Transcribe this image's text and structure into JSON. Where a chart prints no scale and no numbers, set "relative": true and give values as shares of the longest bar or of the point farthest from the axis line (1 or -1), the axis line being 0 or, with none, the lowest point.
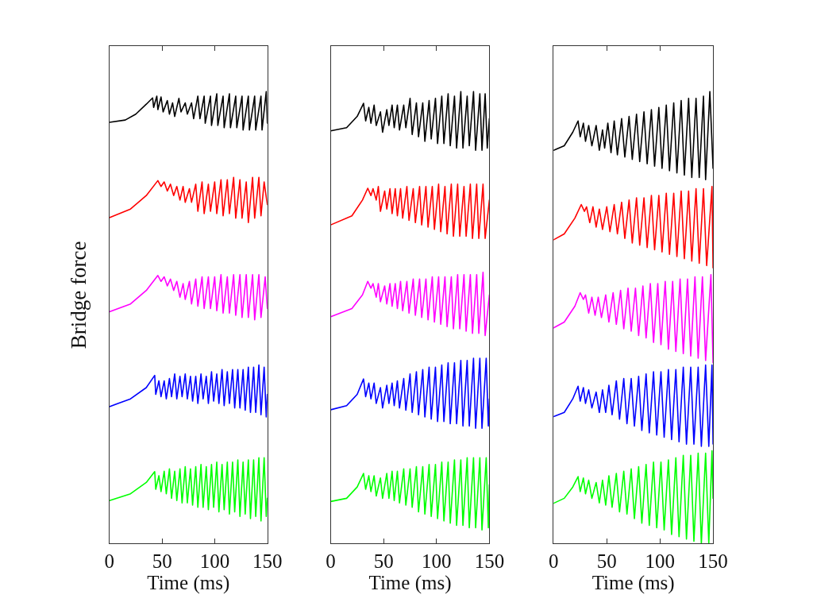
{
  "chart_data": [
    {
      "type": "line",
      "relative": true,
      "xlabel": "Time (ms)",
      "ylabel": "Bridge force",
      "xlim": [
        0,
        150
      ],
      "xticks": [
        0,
        50,
        100,
        150
      ],
      "series": [
        {
          "color": "#000000",
          "x": [
            0,
            15,
            25,
            35,
            41,
            42,
            45,
            46,
            49,
            51,
            55,
            57,
            60,
            62,
            66,
            68,
            72,
            74,
            78,
            80,
            84,
            86,
            90,
            91,
            96,
            97,
            102,
            103,
            108,
            109,
            114,
            115,
            120,
            121,
            126,
            127,
            132,
            133,
            138,
            139,
            144,
            145,
            149,
            150
          ],
          "values": [
            0.932,
            0.937,
            0.95,
            0.972,
            0.986,
            0.965,
            0.99,
            0.96,
            0.988,
            0.955,
            0.98,
            0.95,
            0.975,
            0.945,
            0.985,
            0.955,
            0.975,
            0.95,
            0.975,
            0.94,
            0.99,
            0.94,
            0.99,
            0.93,
            0.99,
            0.925,
            0.995,
            0.925,
            0.99,
            0.92,
            0.995,
            0.92,
            0.99,
            0.92,
            0.99,
            0.915,
            0.99,
            0.915,
            0.99,
            0.915,
            0.99,
            0.915,
            1.0,
            0.93
          ]
        },
        {
          "color": "#ff0000",
          "x": [
            0,
            20,
            35,
            46,
            49,
            52,
            55,
            58,
            61,
            64,
            67,
            70,
            72,
            76,
            78,
            82,
            84,
            88,
            90,
            94,
            96,
            100,
            102,
            106,
            108,
            112,
            114,
            118,
            120,
            124,
            126,
            130,
            132,
            136,
            138,
            142,
            144,
            147,
            150
          ],
          "values": [
            0.721,
            0.74,
            0.77,
            0.803,
            0.79,
            0.8,
            0.78,
            0.795,
            0.77,
            0.79,
            0.76,
            0.79,
            0.755,
            0.785,
            0.755,
            0.795,
            0.735,
            0.8,
            0.73,
            0.795,
            0.735,
            0.8,
            0.73,
            0.805,
            0.725,
            0.805,
            0.73,
            0.81,
            0.72,
            0.805,
            0.72,
            0.8,
            0.71,
            0.81,
            0.72,
            0.81,
            0.725,
            0.8,
            0.75
          ]
        },
        {
          "color": "#ff00ff",
          "x": [
            0,
            20,
            35,
            46,
            49,
            52,
            55,
            58,
            61,
            64,
            67,
            70,
            72,
            76,
            78,
            82,
            84,
            88,
            90,
            94,
            96,
            100,
            102,
            106,
            108,
            112,
            114,
            118,
            120,
            124,
            126,
            130,
            132,
            136,
            138,
            142,
            144,
            148,
            150
          ],
          "values": [
            0.513,
            0.53,
            0.56,
            0.593,
            0.58,
            0.59,
            0.57,
            0.585,
            0.56,
            0.58,
            0.545,
            0.575,
            0.54,
            0.58,
            0.53,
            0.585,
            0.525,
            0.59,
            0.52,
            0.59,
            0.52,
            0.59,
            0.515,
            0.595,
            0.51,
            0.59,
            0.51,
            0.595,
            0.505,
            0.595,
            0.5,
            0.595,
            0.5,
            0.595,
            0.495,
            0.595,
            0.5,
            0.59,
            0.52
          ]
        },
        {
          "color": "#0000ff",
          "x": [
            0,
            20,
            35,
            43,
            44,
            47,
            49,
            52,
            54,
            57,
            59,
            62,
            64,
            67,
            69,
            72,
            74,
            77,
            79,
            82,
            84,
            87,
            89,
            92,
            94,
            97,
            99,
            102,
            104,
            107,
            109,
            112,
            114,
            117,
            119,
            122,
            124,
            127,
            129,
            132,
            134,
            137,
            139,
            142,
            144,
            147,
            149,
            150
          ],
          "values": [
            0.303,
            0.32,
            0.345,
            0.372,
            0.33,
            0.36,
            0.325,
            0.36,
            0.32,
            0.365,
            0.325,
            0.375,
            0.32,
            0.37,
            0.325,
            0.375,
            0.32,
            0.37,
            0.315,
            0.37,
            0.31,
            0.375,
            0.32,
            0.37,
            0.31,
            0.38,
            0.315,
            0.375,
            0.31,
            0.385,
            0.305,
            0.38,
            0.31,
            0.385,
            0.3,
            0.385,
            0.3,
            0.385,
            0.295,
            0.39,
            0.29,
            0.39,
            0.29,
            0.395,
            0.285,
            0.39,
            0.28,
            0.33
          ]
        },
        {
          "color": "#00ff00",
          "x": [
            0,
            20,
            35,
            43,
            44,
            47,
            49,
            52,
            54,
            57,
            59,
            62,
            64,
            67,
            69,
            72,
            74,
            77,
            79,
            82,
            84,
            87,
            89,
            92,
            94,
            97,
            99,
            102,
            104,
            107,
            109,
            112,
            114,
            117,
            119,
            122,
            124,
            127,
            129,
            132,
            134,
            137,
            139,
            142,
            144,
            147,
            149,
            150
          ],
          "values": [
            0.095,
            0.11,
            0.135,
            0.159,
            0.12,
            0.15,
            0.115,
            0.16,
            0.11,
            0.165,
            0.1,
            0.16,
            0.095,
            0.165,
            0.09,
            0.17,
            0.09,
            0.165,
            0.085,
            0.17,
            0.08,
            0.175,
            0.08,
            0.17,
            0.075,
            0.175,
            0.08,
            0.18,
            0.07,
            0.175,
            0.075,
            0.18,
            0.065,
            0.18,
            0.07,
            0.185,
            0.06,
            0.18,
            0.065,
            0.185,
            0.055,
            0.185,
            0.06,
            0.19,
            0.05,
            0.19,
            0.06,
            0.1
          ]
        }
      ]
    },
    {
      "type": "line",
      "relative": true,
      "xlabel": "Time (ms)",
      "xlim": [
        0,
        150
      ],
      "xticks": [
        0,
        50,
        100,
        150
      ],
      "series": [
        {
          "color": "#000000",
          "x": [
            0,
            15,
            25,
            31,
            33,
            36,
            38,
            41,
            43,
            47,
            49,
            53,
            55,
            58,
            60,
            63,
            65,
            69,
            71,
            75,
            77,
            81,
            83,
            87,
            89,
            93,
            95,
            99,
            101,
            105,
            107,
            111,
            113,
            117,
            119,
            123,
            125,
            129,
            131,
            135,
            137,
            141,
            143,
            146,
            148,
            150
          ],
          "values": [
            0.913,
            0.92,
            0.945,
            0.974,
            0.935,
            0.965,
            0.93,
            0.97,
            0.925,
            0.955,
            0.91,
            0.96,
            0.925,
            0.97,
            0.92,
            0.97,
            0.915,
            0.97,
            0.92,
            0.985,
            0.905,
            0.975,
            0.9,
            0.975,
            0.89,
            0.98,
            0.895,
            0.985,
            0.885,
            0.99,
            0.885,
            0.995,
            0.88,
            0.99,
            0.875,
            1.0,
            0.875,
            0.99,
            0.88,
            1.0,
            0.87,
            0.995,
            0.87,
            0.995,
            0.875,
            0.94
          ]
        },
        {
          "color": "#ff0000",
          "x": [
            0,
            20,
            30,
            35,
            38,
            40,
            43,
            45,
            47,
            51,
            53,
            56,
            58,
            61,
            63,
            66,
            68,
            72,
            74,
            78,
            80,
            84,
            86,
            90,
            92,
            96,
            98,
            102,
            104,
            108,
            110,
            114,
            116,
            120,
            122,
            126,
            128,
            132,
            134,
            138,
            140,
            144,
            146,
            150
          ],
          "values": [
            0.705,
            0.725,
            0.76,
            0.786,
            0.77,
            0.785,
            0.76,
            0.79,
            0.735,
            0.78,
            0.74,
            0.785,
            0.73,
            0.785,
            0.725,
            0.785,
            0.72,
            0.79,
            0.715,
            0.785,
            0.71,
            0.79,
            0.705,
            0.79,
            0.7,
            0.79,
            0.695,
            0.795,
            0.69,
            0.79,
            0.685,
            0.795,
            0.68,
            0.795,
            0.68,
            0.79,
            0.68,
            0.795,
            0.675,
            0.795,
            0.675,
            0.795,
            0.675,
            0.76
          ]
        },
        {
          "color": "#ff00ff",
          "x": [
            0,
            20,
            30,
            35,
            38,
            40,
            43,
            45,
            47,
            51,
            53,
            56,
            58,
            61,
            63,
            66,
            68,
            72,
            74,
            78,
            80,
            84,
            86,
            90,
            92,
            96,
            98,
            102,
            104,
            108,
            110,
            114,
            116,
            120,
            122,
            126,
            128,
            132,
            134,
            138,
            140,
            144,
            146,
            150
          ],
          "values": [
            0.502,
            0.52,
            0.55,
            0.58,
            0.565,
            0.575,
            0.545,
            0.575,
            0.535,
            0.57,
            0.53,
            0.575,
            0.525,
            0.575,
            0.52,
            0.58,
            0.515,
            0.58,
            0.51,
            0.585,
            0.505,
            0.585,
            0.5,
            0.585,
            0.495,
            0.59,
            0.49,
            0.59,
            0.485,
            0.59,
            0.48,
            0.59,
            0.475,
            0.595,
            0.475,
            0.595,
            0.47,
            0.595,
            0.465,
            0.595,
            0.465,
            0.6,
            0.46,
            0.55
          ]
        },
        {
          "color": "#0000ff",
          "x": [
            0,
            15,
            25,
            31,
            33,
            36,
            38,
            41,
            43,
            47,
            49,
            53,
            55,
            58,
            60,
            63,
            65,
            69,
            71,
            75,
            77,
            81,
            83,
            87,
            89,
            93,
            95,
            99,
            101,
            105,
            107,
            111,
            113,
            117,
            119,
            123,
            125,
            129,
            131,
            135,
            137,
            141,
            143,
            147,
            149,
            150
          ],
          "values": [
            0.296,
            0.305,
            0.33,
            0.364,
            0.325,
            0.355,
            0.32,
            0.355,
            0.31,
            0.345,
            0.3,
            0.35,
            0.31,
            0.355,
            0.305,
            0.36,
            0.3,
            0.365,
            0.295,
            0.375,
            0.29,
            0.38,
            0.285,
            0.385,
            0.28,
            0.39,
            0.275,
            0.39,
            0.27,
            0.395,
            0.27,
            0.4,
            0.265,
            0.4,
            0.265,
            0.405,
            0.26,
            0.405,
            0.26,
            0.41,
            0.255,
            0.41,
            0.255,
            0.41,
            0.26,
            0.32
          ]
        },
        {
          "color": "#00ff00",
          "x": [
            0,
            15,
            25,
            31,
            33,
            36,
            38,
            41,
            43,
            47,
            49,
            53,
            55,
            58,
            60,
            63,
            65,
            69,
            71,
            75,
            77,
            81,
            83,
            87,
            89,
            93,
            95,
            99,
            101,
            105,
            107,
            111,
            113,
            117,
            119,
            123,
            125,
            129,
            131,
            135,
            137,
            141,
            143,
            147,
            149,
            150
          ],
          "values": [
            0.093,
            0.1,
            0.125,
            0.155,
            0.12,
            0.15,
            0.115,
            0.15,
            0.105,
            0.145,
            0.1,
            0.155,
            0.1,
            0.16,
            0.095,
            0.16,
            0.09,
            0.165,
            0.085,
            0.165,
            0.08,
            0.17,
            0.07,
            0.17,
            0.065,
            0.175,
            0.06,
            0.175,
            0.055,
            0.18,
            0.05,
            0.18,
            0.045,
            0.185,
            0.04,
            0.185,
            0.04,
            0.19,
            0.035,
            0.19,
            0.035,
            0.19,
            0.03,
            0.19,
            0.035,
            0.13
          ]
        }
      ]
    },
    {
      "type": "line",
      "relative": true,
      "xlabel": "Time (ms)",
      "xlim": [
        0,
        150
      ],
      "xticks": [
        0,
        50,
        100,
        150
      ],
      "series": [
        {
          "color": "#000000",
          "x": [
            0,
            10,
            18,
            23,
            25,
            28,
            30,
            33,
            36,
            40,
            43,
            46,
            48,
            51,
            54,
            57,
            60,
            64,
            67,
            71,
            74,
            78,
            81,
            85,
            88,
            92,
            95,
            99,
            102,
            106,
            109,
            113,
            116,
            120,
            123,
            127,
            130,
            134,
            137,
            141,
            143,
            147,
            150
          ],
          "values": [
            0.87,
            0.88,
            0.91,
            0.935,
            0.9,
            0.93,
            0.89,
            0.925,
            0.88,
            0.925,
            0.87,
            0.915,
            0.875,
            0.93,
            0.865,
            0.935,
            0.86,
            0.94,
            0.855,
            0.945,
            0.85,
            0.95,
            0.845,
            0.955,
            0.84,
            0.96,
            0.835,
            0.965,
            0.83,
            0.97,
            0.825,
            0.975,
            0.82,
            0.98,
            0.815,
            0.985,
            0.81,
            0.985,
            0.81,
            0.99,
            0.805,
            1.0,
            0.83
          ]
        },
        {
          "color": "#ff0000",
          "x": [
            0,
            10,
            20,
            26,
            29,
            31,
            34,
            37,
            40,
            43,
            46,
            50,
            53,
            57,
            60,
            64,
            67,
            71,
            74,
            78,
            81,
            85,
            88,
            92,
            95,
            99,
            102,
            106,
            109,
            113,
            116,
            120,
            123,
            127,
            130,
            134,
            137,
            141,
            144,
            149,
            150
          ],
          "values": [
            0.672,
            0.685,
            0.72,
            0.75,
            0.735,
            0.745,
            0.71,
            0.745,
            0.7,
            0.74,
            0.695,
            0.745,
            0.69,
            0.75,
            0.685,
            0.755,
            0.675,
            0.76,
            0.665,
            0.765,
            0.66,
            0.765,
            0.655,
            0.77,
            0.65,
            0.77,
            0.645,
            0.775,
            0.64,
            0.775,
            0.635,
            0.78,
            0.63,
            0.78,
            0.625,
            0.785,
            0.62,
            0.785,
            0.615,
            0.79,
            0.61
          ]
        },
        {
          "color": "#ff00ff",
          "x": [
            0,
            10,
            20,
            25,
            28,
            30,
            33,
            36,
            39,
            42,
            45,
            49,
            52,
            56,
            59,
            63,
            66,
            70,
            73,
            77,
            80,
            84,
            87,
            91,
            94,
            98,
            101,
            105,
            108,
            112,
            115,
            119,
            122,
            126,
            129,
            133,
            136,
            140,
            143,
            148,
            150
          ],
          "values": [
            0.477,
            0.49,
            0.525,
            0.555,
            0.54,
            0.55,
            0.51,
            0.545,
            0.505,
            0.545,
            0.5,
            0.55,
            0.49,
            0.555,
            0.485,
            0.56,
            0.475,
            0.565,
            0.47,
            0.565,
            0.46,
            0.57,
            0.455,
            0.575,
            0.445,
            0.575,
            0.44,
            0.58,
            0.43,
            0.58,
            0.425,
            0.585,
            0.42,
            0.585,
            0.415,
            0.59,
            0.41,
            0.59,
            0.405,
            0.595,
            0.4
          ]
        },
        {
          "color": "#0000ff",
          "x": [
            0,
            10,
            18,
            23,
            25,
            28,
            30,
            33,
            36,
            40,
            43,
            46,
            49,
            52,
            55,
            59,
            62,
            66,
            69,
            73,
            76,
            80,
            83,
            87,
            90,
            94,
            97,
            101,
            104,
            108,
            111,
            115,
            118,
            122,
            125,
            129,
            132,
            136,
            139,
            143,
            146,
            149,
            150
          ],
          "values": [
            0.281,
            0.29,
            0.32,
            0.348,
            0.315,
            0.345,
            0.31,
            0.34,
            0.3,
            0.335,
            0.29,
            0.34,
            0.29,
            0.35,
            0.285,
            0.36,
            0.275,
            0.365,
            0.265,
            0.365,
            0.26,
            0.37,
            0.25,
            0.375,
            0.245,
            0.38,
            0.24,
            0.38,
            0.235,
            0.385,
            0.23,
            0.385,
            0.225,
            0.39,
            0.22,
            0.39,
            0.22,
            0.39,
            0.215,
            0.395,
            0.215,
            0.395,
            0.22
          ]
        },
        {
          "color": "#00ff00",
          "x": [
            0,
            10,
            18,
            23,
            25,
            28,
            30,
            33,
            36,
            40,
            43,
            46,
            49,
            52,
            55,
            59,
            62,
            66,
            69,
            73,
            76,
            80,
            83,
            87,
            90,
            94,
            97,
            101,
            104,
            108,
            111,
            115,
            118,
            122,
            125,
            129,
            132,
            136,
            139,
            143,
            146,
            149,
            150
          ],
          "values": [
            0.089,
            0.1,
            0.125,
            0.148,
            0.115,
            0.145,
            0.11,
            0.14,
            0.1,
            0.135,
            0.09,
            0.14,
            0.085,
            0.15,
            0.08,
            0.155,
            0.07,
            0.16,
            0.065,
            0.165,
            0.055,
            0.17,
            0.045,
            0.175,
            0.04,
            0.18,
            0.035,
            0.18,
            0.03,
            0.185,
            0.02,
            0.19,
            0.015,
            0.195,
            0.01,
            0.195,
            0.005,
            0.2,
            0.0,
            0.2,
            0.0,
            0.205,
            0.1
          ]
        }
      ]
    }
  ]
}
